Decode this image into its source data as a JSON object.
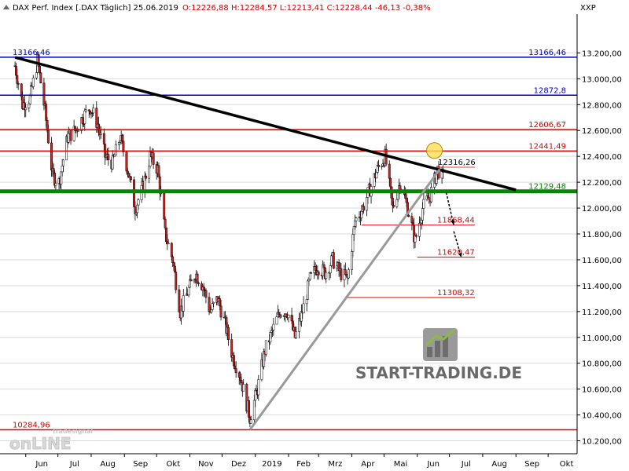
{
  "chart_data": {
    "type": "candlestick",
    "header": {
      "name": "DAX Perf. Index [.DAX  Täglich] 25.06.2019",
      "ohlc": "O:12226,88 H:12284,57 L:12213,41 C:12228,44 -46,13 -0,38%"
    },
    "y_axis_title": "XXP",
    "ylim": [
      10100,
      13500
    ],
    "y_ticks": [
      "10.200,00",
      "10.400,00",
      "10.600,00",
      "10.800,00",
      "11.000,00",
      "11.200,00",
      "11.400,00",
      "11.600,00",
      "11.800,00",
      "12.000,00",
      "12.200,00",
      "12.400,00",
      "12.600,00",
      "12.800,00",
      "13.000,00",
      "13.200,00"
    ],
    "x_ticks": [
      "Jun",
      "Jul",
      "Aug",
      "Sep",
      "Okt",
      "Nov",
      "Dez",
      "2019",
      "Feb",
      "Mrz",
      "Apr",
      "Mai",
      "Jun",
      "Jul",
      "Aug",
      "Sep",
      "Okt"
    ],
    "horizontal_levels": [
      {
        "label": "13166,46",
        "value": 13166.46,
        "color": "#0000cc",
        "label_side": "both"
      },
      {
        "label": "12872,8",
        "value": 12872.8,
        "color": "#0000cc",
        "label_side": "right"
      },
      {
        "label": "12606,67",
        "value": 12606.67,
        "color": "#dd0000",
        "label_side": "right"
      },
      {
        "label": "12441,49",
        "value": 12441.49,
        "color": "#dd0000",
        "label_side": "right"
      },
      {
        "label": "12129,48",
        "value": 12129.48,
        "color": "#008800",
        "label_side": "right"
      },
      {
        "label": "10284,96",
        "value": 10284.96,
        "color": "#dd0000",
        "label_side": "left"
      }
    ],
    "short_levels": [
      {
        "label": "12316,26",
        "value": 12316.26
      },
      {
        "label": "11868,44",
        "value": 11868.44
      },
      {
        "label": "11620,47",
        "value": 11620.47
      },
      {
        "label": "11308,32",
        "value": 11308.32
      }
    ],
    "price_path": [
      [
        "2018-05-22",
        13100
      ],
      [
        "2018-05-29",
        12800
      ],
      [
        "2018-06-05",
        12850
      ],
      [
        "2018-06-12",
        13140
      ],
      [
        "2018-06-19",
        12750
      ],
      [
        "2018-06-26",
        12250
      ],
      [
        "2018-07-02",
        12200
      ],
      [
        "2018-07-10",
        12550
      ],
      [
        "2018-07-17",
        12600
      ],
      [
        "2018-07-24",
        12700
      ],
      [
        "2018-07-31",
        12780
      ],
      [
        "2018-08-07",
        12650
      ],
      [
        "2018-08-14",
        12400
      ],
      [
        "2018-08-21",
        12350
      ],
      [
        "2018-08-28",
        12550
      ],
      [
        "2018-09-04",
        12300
      ],
      [
        "2018-09-11",
        12000
      ],
      [
        "2018-09-18",
        12150
      ],
      [
        "2018-09-25",
        12400
      ],
      [
        "2018-10-02",
        12300
      ],
      [
        "2018-10-09",
        11800
      ],
      [
        "2018-10-16",
        11600
      ],
      [
        "2018-10-23",
        11200
      ],
      [
        "2018-10-30",
        11350
      ],
      [
        "2018-11-06",
        11500
      ],
      [
        "2018-11-13",
        11400
      ],
      [
        "2018-11-20",
        11200
      ],
      [
        "2018-11-27",
        11300
      ],
      [
        "2018-12-04",
        11100
      ],
      [
        "2018-12-11",
        10850
      ],
      [
        "2018-12-18",
        10700
      ],
      [
        "2018-12-27",
        10380
      ],
      [
        "2019-01-03",
        10600
      ],
      [
        "2019-01-10",
        10900
      ],
      [
        "2019-01-17",
        11050
      ],
      [
        "2019-01-24",
        11200
      ],
      [
        "2019-01-31",
        11200
      ],
      [
        "2019-02-07",
        11000
      ],
      [
        "2019-02-14",
        11200
      ],
      [
        "2019-02-21",
        11450
      ],
      [
        "2019-02-28",
        11550
      ],
      [
        "2019-03-07",
        11500
      ],
      [
        "2019-03-14",
        11600
      ],
      [
        "2019-03-21",
        11500
      ],
      [
        "2019-03-28",
        11450
      ],
      [
        "2019-04-04",
        11900
      ],
      [
        "2019-04-11",
        12000
      ],
      [
        "2019-04-18",
        12150
      ],
      [
        "2019-04-25",
        12300
      ],
      [
        "2019-05-02",
        12400
      ],
      [
        "2019-05-09",
        12000
      ],
      [
        "2019-05-16",
        12200
      ],
      [
        "2019-05-23",
        12000
      ],
      [
        "2019-05-30",
        11750
      ],
      [
        "2019-06-06",
        12000
      ],
      [
        "2019-06-13",
        12100
      ],
      [
        "2019-06-20",
        12300
      ],
      [
        "2019-06-25",
        12228
      ]
    ],
    "annotations": [
      {
        "type": "line",
        "color": "#000000",
        "from": [
          "2018-05-22",
          13166
        ],
        "to": [
          "2019-09-01",
          12140
        ]
      },
      {
        "type": "line",
        "color": "#999999",
        "from": [
          "2018-12-27",
          10285
        ],
        "to": [
          "2019-06-22",
          12300
        ]
      },
      {
        "type": "arrow",
        "color": "#000000",
        "from": [
          "2019-06-28",
          12120
        ],
        "to": [
          "2019-07-05",
          11870
        ]
      },
      {
        "type": "arrow",
        "color": "#000000",
        "from": [
          "2019-07-05",
          11820
        ],
        "to": [
          "2019-07-12",
          11620
        ]
      },
      {
        "type": "circle",
        "color": "#ffdd55",
        "at": [
          "2019-06-17",
          12445
        ]
      }
    ]
  },
  "watermark": {
    "brand": "START-TRADING.DE",
    "product_top": "Tradesignal",
    "product_main": "onLINE"
  }
}
